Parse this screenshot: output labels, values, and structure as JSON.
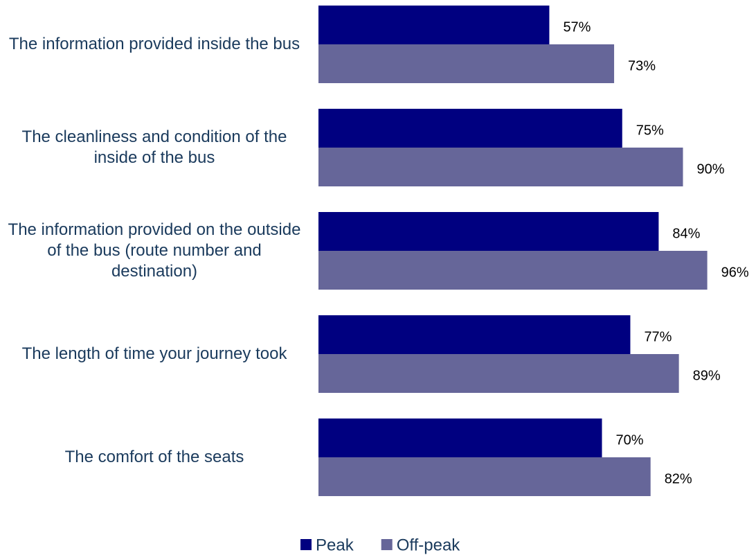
{
  "chart_data": {
    "type": "bar",
    "orientation": "horizontal",
    "categories": [
      "The information provided inside the bus",
      "The cleanliness and condition of the inside of the bus",
      "The information provided on the outside of the bus (route number and destination)",
      "The length of time your journey took",
      "The comfort of the seats"
    ],
    "series": [
      {
        "name": "Peak",
        "color": "#000080",
        "values": [
          57,
          75,
          84,
          77,
          70
        ],
        "value_labels": [
          "57%",
          "75%",
          "84%",
          "77%",
          "70%"
        ]
      },
      {
        "name": "Off-peak",
        "color": "#666699",
        "values": [
          73,
          90,
          96,
          89,
          82
        ],
        "value_labels": [
          "73%",
          "90%",
          "96%",
          "89%",
          "82%"
        ]
      }
    ],
    "xlim": [
      0,
      100
    ]
  }
}
